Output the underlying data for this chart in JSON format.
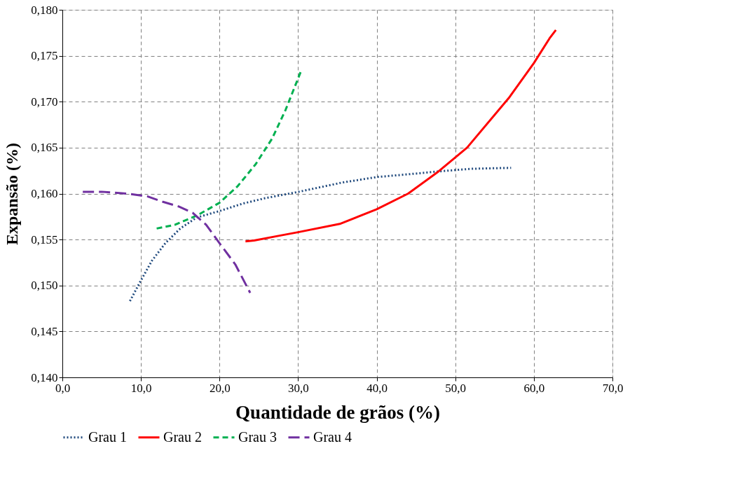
{
  "chart_data": {
    "type": "line",
    "xlabel": "Quantidade de grãos (%)",
    "ylabel": "Expansão (%)",
    "xlim": [
      0,
      70
    ],
    "ylim": [
      0.14,
      0.18
    ],
    "xticks": [
      {
        "value": 0,
        "label": "0,0"
      },
      {
        "value": 10,
        "label": "10,0"
      },
      {
        "value": 20,
        "label": "20,0"
      },
      {
        "value": 30,
        "label": "30,0"
      },
      {
        "value": 40,
        "label": "40,0"
      },
      {
        "value": 50,
        "label": "50,0"
      },
      {
        "value": 60,
        "label": "60,0"
      },
      {
        "value": 70,
        "label": "70,0"
      }
    ],
    "yticks": [
      {
        "value": 0.14,
        "label": "0,140"
      },
      {
        "value": 0.145,
        "label": "0,145"
      },
      {
        "value": 0.15,
        "label": "0,150"
      },
      {
        "value": 0.155,
        "label": "0,155"
      },
      {
        "value": 0.16,
        "label": "0,160"
      },
      {
        "value": 0.165,
        "label": "0,165"
      },
      {
        "value": 0.17,
        "label": "0,170"
      },
      {
        "value": 0.175,
        "label": "0,175"
      },
      {
        "value": 0.18,
        "label": "0,180"
      }
    ],
    "grid": true,
    "legend": "bottom",
    "marker": "none",
    "series": [
      {
        "name": "Grau 1",
        "color": "#1f497d",
        "line_style": "dotted",
        "x": [
          8.6,
          9.9,
          11.4,
          13.1,
          15.0,
          17.1,
          20.0,
          22.9,
          25.8,
          30.1,
          35.6,
          40.0,
          44.0,
          47.7,
          52.0,
          57.1
        ],
        "values": [
          0.1483,
          0.1504,
          0.1527,
          0.1546,
          0.1562,
          0.1574,
          0.1581,
          0.1589,
          0.1595,
          0.1602,
          0.1612,
          0.1618,
          0.1621,
          0.1624,
          0.1627,
          0.1628
        ]
      },
      {
        "name": "Grau 2",
        "color": "#ff0000",
        "line_style": "solid",
        "x": [
          23.3,
          24.4,
          27.5,
          30.0,
          35.3,
          40.0,
          44.0,
          47.7,
          51.5,
          56.9,
          60.0,
          62.0,
          62.8
        ],
        "values": [
          0.1548,
          0.1549,
          0.1554,
          0.1558,
          0.1567,
          0.1583,
          0.16,
          0.1623,
          0.165,
          0.1705,
          0.1742,
          0.1769,
          0.1778
        ]
      },
      {
        "name": "Grau 3",
        "color": "#00b050",
        "line_style": "dashed",
        "x": [
          12.0,
          14.3,
          17.1,
          20.0,
          22.3,
          24.6,
          26.7,
          28.4,
          30.4
        ],
        "values": [
          0.1562,
          0.1566,
          0.1576,
          0.159,
          0.1608,
          0.1632,
          0.166,
          0.1691,
          0.1734
        ]
      },
      {
        "name": "Grau 4",
        "color": "#7030a0",
        "line_style": "longdash",
        "x": [
          2.6,
          5.0,
          8.2,
          10.8,
          12.8,
          14.8,
          16.6,
          18.3,
          20.0,
          22.0,
          23.9
        ],
        "values": [
          0.1602,
          0.1602,
          0.16,
          0.1597,
          0.1591,
          0.1586,
          0.1579,
          0.1566,
          0.1546,
          0.1523,
          0.1492
        ]
      }
    ]
  }
}
